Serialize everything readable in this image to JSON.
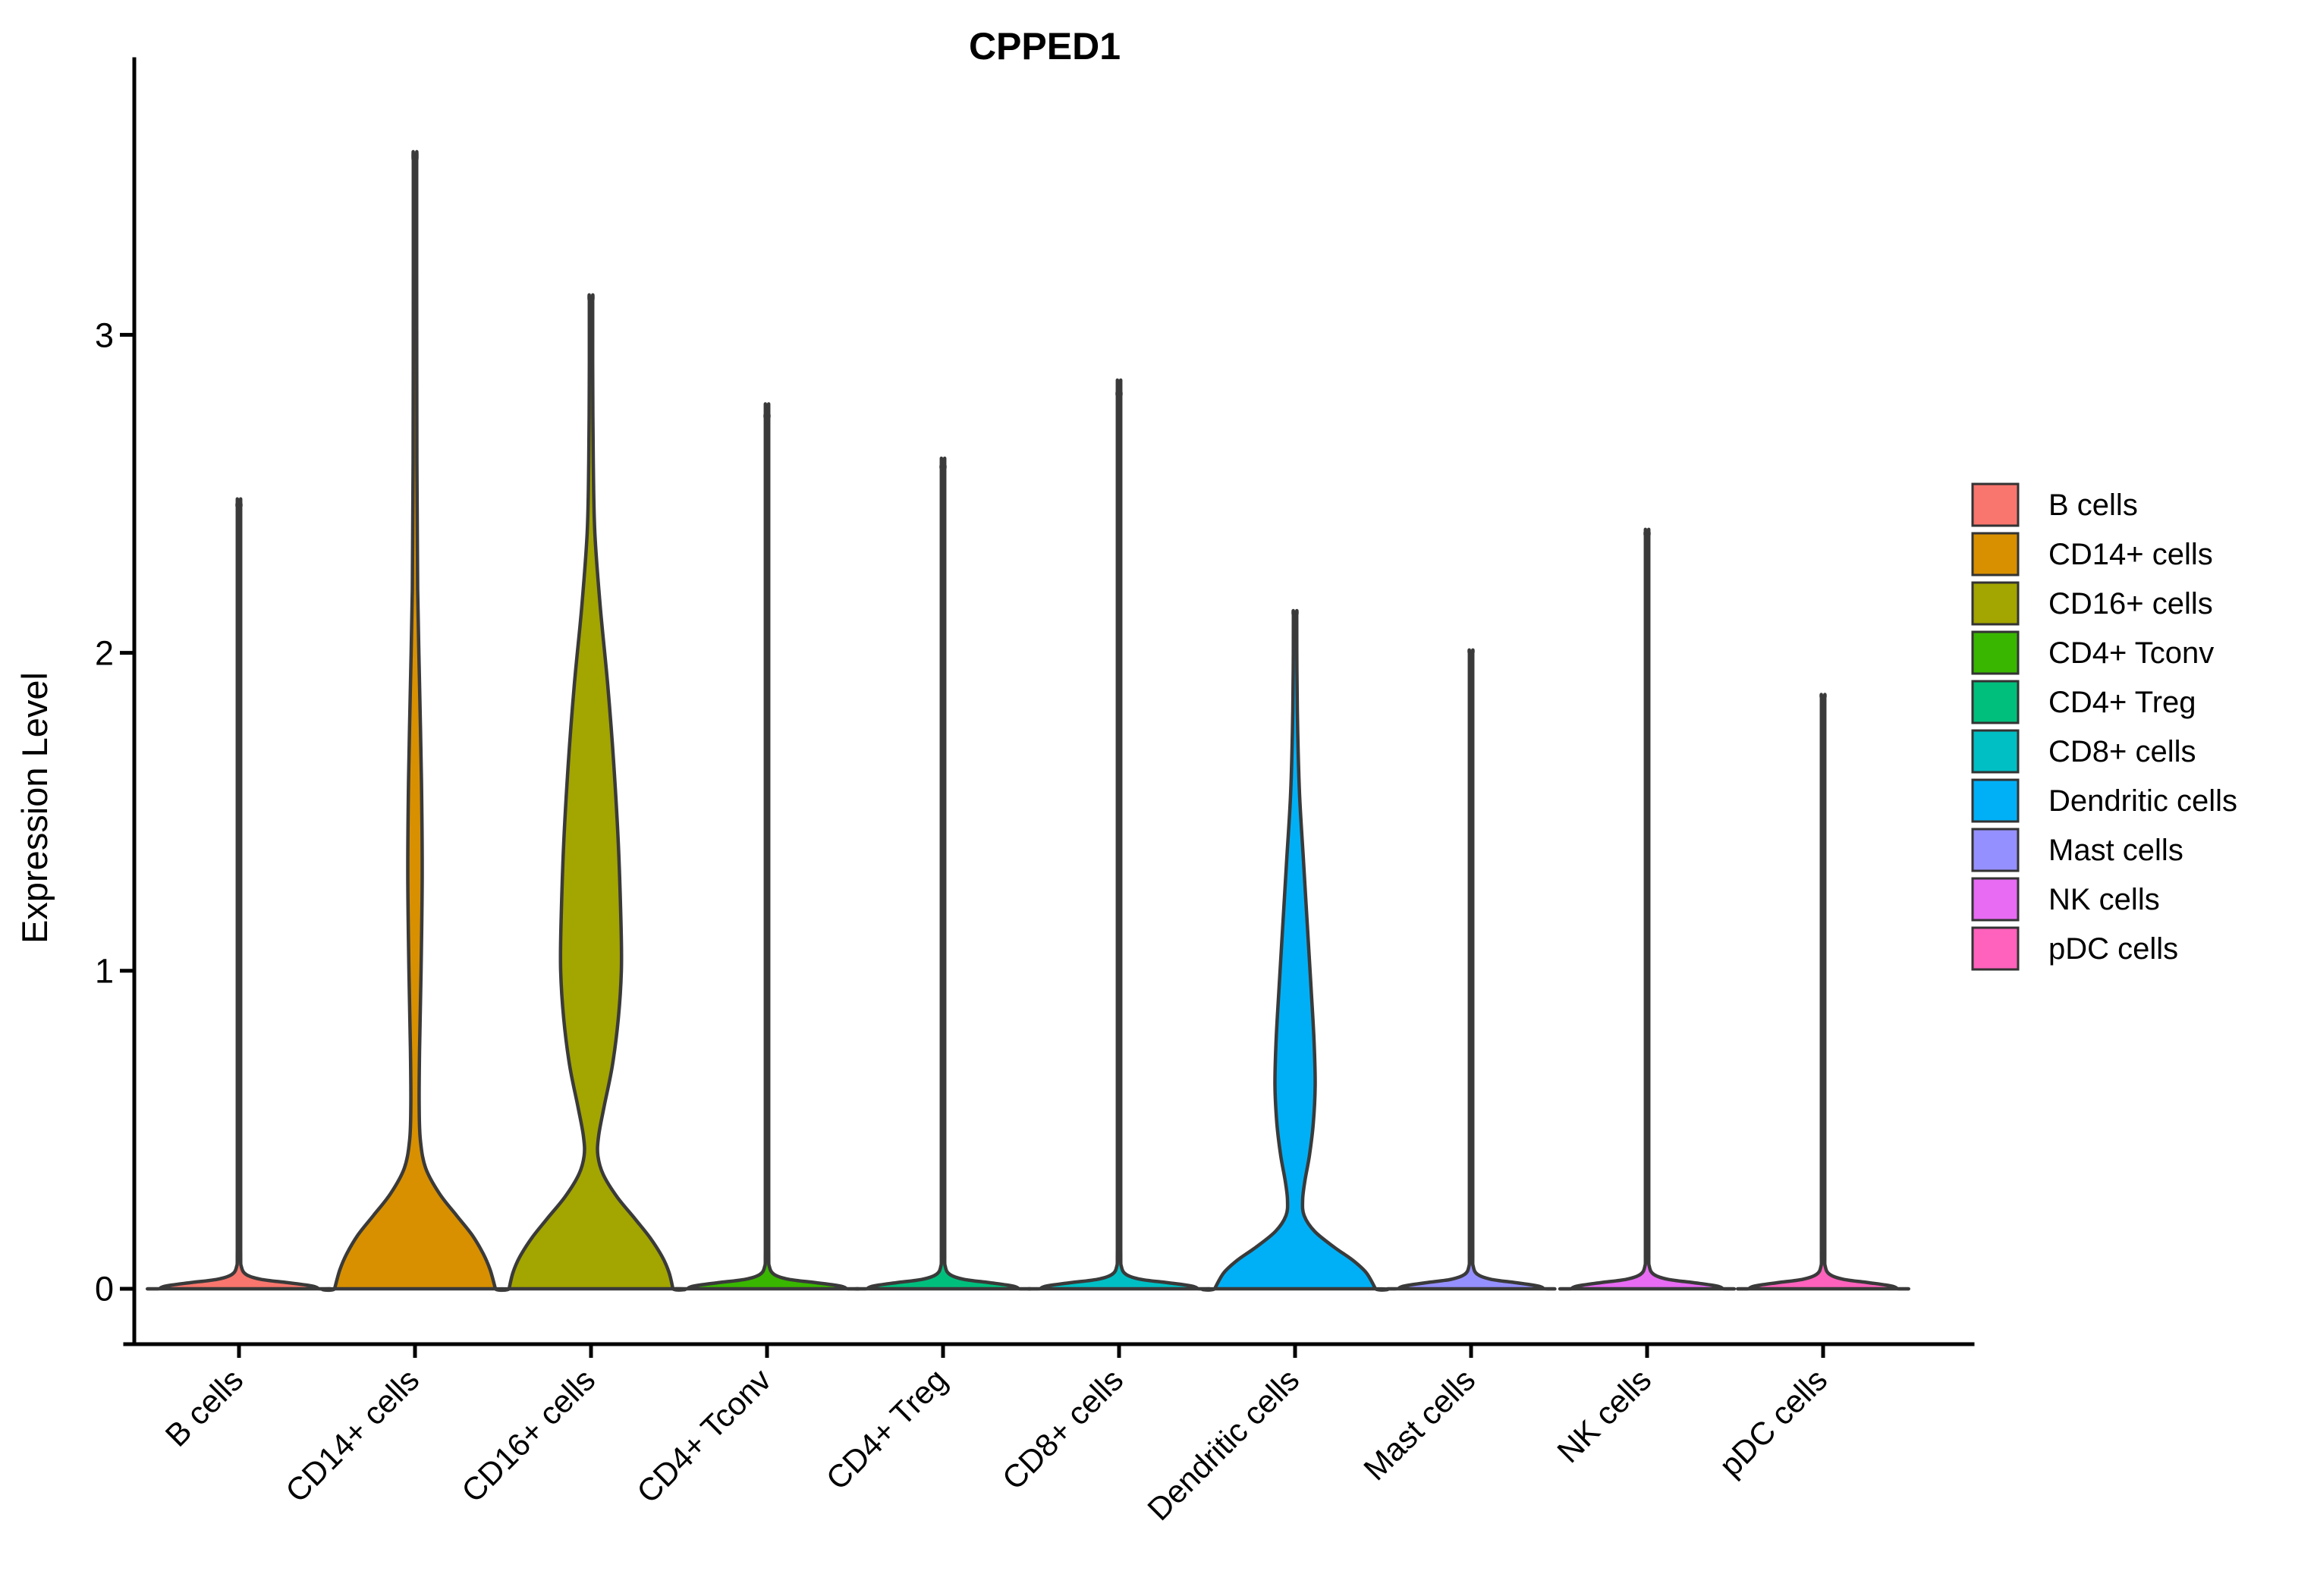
{
  "title": "CPPED1",
  "y_axis": {
    "label": "Expression Level"
  },
  "legend_position": "right",
  "chart_data": {
    "type": "violin",
    "title": "CPPED1",
    "xlabel": "",
    "ylabel": "Expression Level",
    "ylim": [
      0,
      3.7
    ],
    "grid": false,
    "legend_position": "right",
    "yticks": [
      0,
      1,
      2,
      3
    ],
    "categories": [
      "B cells",
      "CD14+ cells",
      "CD16+ cells",
      "CD4+ Tconv",
      "CD4+ Treg",
      "CD8+ cells",
      "Dendritic cells",
      "Mast cells",
      "NK cells",
      "pDC cells"
    ],
    "colors": [
      "#F8766D",
      "#D89000",
      "#A3A500",
      "#39B600",
      "#00BF7D",
      "#00BFC4",
      "#00B0F6",
      "#9590FF",
      "#E76BF3",
      "#FF62BC"
    ],
    "series": [
      {
        "name": "B cells",
        "shape": "flat",
        "max_expression": 2.46,
        "base_halfwidth": 105
      },
      {
        "name": "CD14+ cells",
        "shape": "profile",
        "max_expression": 3.55,
        "base_halfwidth": 106,
        "profile": [
          [
            3.55,
            2.2
          ],
          [
            3.2,
            2.2
          ],
          [
            2.6,
            2.5
          ],
          [
            2.2,
            3.5
          ],
          [
            1.9,
            6
          ],
          [
            1.6,
            8.5
          ],
          [
            1.3,
            9.5
          ],
          [
            1.0,
            8
          ],
          [
            0.75,
            6
          ],
          [
            0.58,
            5.5
          ],
          [
            0.47,
            7
          ],
          [
            0.38,
            14
          ],
          [
            0.3,
            32
          ],
          [
            0.23,
            55
          ],
          [
            0.17,
            75
          ],
          [
            0.11,
            90
          ],
          [
            0.06,
            99
          ],
          [
            0,
            106
          ]
        ]
      },
      {
        "name": "CD16+ cells",
        "shape": "profile",
        "max_expression": 3.11,
        "base_halfwidth": 108,
        "profile": [
          [
            3.11,
            2.2
          ],
          [
            2.9,
            2.2
          ],
          [
            2.6,
            3
          ],
          [
            2.38,
            5
          ],
          [
            2.15,
            12
          ],
          [
            1.9,
            22
          ],
          [
            1.65,
            30
          ],
          [
            1.4,
            36
          ],
          [
            1.15,
            39.5
          ],
          [
            1.0,
            40
          ],
          [
            0.85,
            36
          ],
          [
            0.7,
            28
          ],
          [
            0.57,
            17
          ],
          [
            0.48,
            10
          ],
          [
            0.42,
            9
          ],
          [
            0.36,
            16
          ],
          [
            0.29,
            34
          ],
          [
            0.22,
            58
          ],
          [
            0.16,
            78
          ],
          [
            0.1,
            94
          ],
          [
            0.05,
            103
          ],
          [
            0,
            108
          ]
        ]
      },
      {
        "name": "CD4+ Tconv",
        "shape": "flat",
        "max_expression": 2.74,
        "base_halfwidth": 105
      },
      {
        "name": "CD4+ Treg",
        "shape": "flat",
        "max_expression": 2.58,
        "base_halfwidth": 100
      },
      {
        "name": "CD8+ cells",
        "shape": "flat",
        "max_expression": 2.81,
        "base_halfwidth": 104
      },
      {
        "name": "Dendritic cells",
        "shape": "profile",
        "max_expression": 2.12,
        "base_halfwidth": 106,
        "profile": [
          [
            2.12,
            2.2
          ],
          [
            1.95,
            2.4
          ],
          [
            1.75,
            3.5
          ],
          [
            1.55,
            6
          ],
          [
            1.35,
            11
          ],
          [
            1.15,
            16
          ],
          [
            0.95,
            21
          ],
          [
            0.78,
            25
          ],
          [
            0.64,
            26.5
          ],
          [
            0.52,
            24
          ],
          [
            0.42,
            19
          ],
          [
            0.34,
            13
          ],
          [
            0.28,
            10
          ],
          [
            0.23,
            12
          ],
          [
            0.18,
            26
          ],
          [
            0.13,
            52
          ],
          [
            0.09,
            76
          ],
          [
            0.05,
            94
          ],
          [
            0,
            106
          ]
        ]
      },
      {
        "name": "Mast cells",
        "shape": "flat",
        "max_expression": 2.0,
        "base_halfwidth": 96
      },
      {
        "name": "NK cells",
        "shape": "flat",
        "max_expression": 2.37,
        "base_halfwidth": 100
      },
      {
        "name": "pDC cells",
        "shape": "flat",
        "max_expression": 1.86,
        "base_halfwidth": 98
      }
    ]
  }
}
